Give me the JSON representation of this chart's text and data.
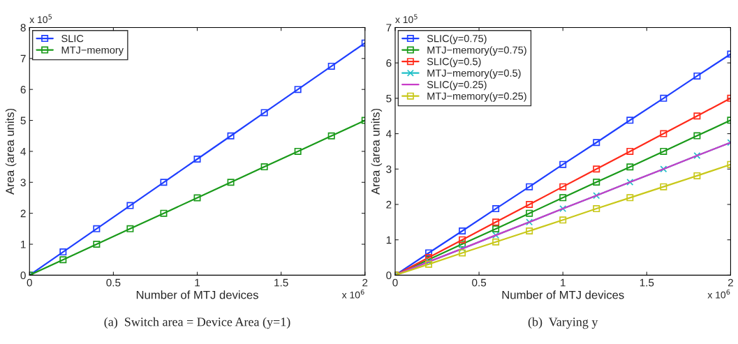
{
  "chart_data": [
    {
      "type": "line",
      "xlabel": "Number of MTJ devices",
      "ylabel": "Area (area units)",
      "legend": "top left",
      "grid": false,
      "marker": "square",
      "line_style": "solid",
      "x": [
        0,
        0.2,
        0.4,
        0.6,
        0.8,
        1,
        1.2,
        1.4,
        1.6,
        1.8,
        2
      ],
      "xlim": [
        0,
        2
      ],
      "xticks": [
        0,
        0.5,
        1,
        1.5,
        2
      ],
      "ylim": [
        0,
        8
      ],
      "yticks": [
        0,
        1,
        2,
        3,
        4,
        5,
        6,
        7,
        8
      ],
      "annotations": [
        "x 10$^{5}$",
        "x 10$^{6}$",
        "(a)  Switch area = Device Area (y=1)"
      ],
      "series": [
        {
          "name": "SLIC",
          "color": "#1f3fff",
          "values": [
            0,
            0.75,
            1.5,
            2.25,
            3,
            3.75,
            4.5,
            5.25,
            6,
            6.75,
            7.5
          ]
        },
        {
          "name": "MTJ−memory",
          "color": "#1a9a1a",
          "values": [
            0,
            0.5,
            1,
            1.5,
            2,
            2.5,
            3,
            3.5,
            4,
            4.5,
            5
          ]
        }
      ]
    },
    {
      "type": "line",
      "xlabel": "Number of MTJ devices",
      "ylabel": "Area (area units)",
      "legend": "top left",
      "grid": false,
      "line_style": "solid",
      "x": [
        0,
        0.2,
        0.4,
        0.6,
        0.8,
        1,
        1.2,
        1.4,
        1.6,
        1.8,
        2
      ],
      "xlim": [
        0,
        2
      ],
      "xticks": [
        0,
        0.5,
        1,
        1.5,
        2
      ],
      "ylim": [
        0,
        7
      ],
      "yticks": [
        0,
        1,
        2,
        3,
        4,
        5,
        6,
        7
      ],
      "annotations": [
        "x 10$^{5}$",
        "x 10$^{6}$",
        "(b)  Varying y"
      ],
      "series": [
        {
          "name": "SLIC(y=0.75)",
          "color": "#1f3fff",
          "marker": "square",
          "values": [
            0,
            0.63,
            1.25,
            1.88,
            2.5,
            3.13,
            3.75,
            4.38,
            5,
            5.63,
            6.25
          ]
        },
        {
          "name": "MTJ−memory(y=0.75)",
          "color": "#1a9a1a",
          "marker": "square",
          "values": [
            0,
            0.44,
            0.88,
            1.31,
            1.75,
            2.19,
            2.63,
            3.06,
            3.5,
            3.94,
            4.38
          ]
        },
        {
          "name": "SLIC(y=0.5)",
          "color": "#ff2a1a",
          "marker": "square",
          "values": [
            0,
            0.5,
            1,
            1.5,
            2,
            2.5,
            3,
            3.5,
            4,
            4.5,
            5
          ]
        },
        {
          "name": "MTJ−memory(y=0.5)",
          "color": "#20c0c8",
          "marker": "cross",
          "values": [
            0,
            0.38,
            0.75,
            1.13,
            1.5,
            1.88,
            2.25,
            2.63,
            3,
            3.38,
            3.75
          ]
        },
        {
          "name": "SLIC(y=0.25)",
          "color": "#c83cc8",
          "marker": "none",
          "values": [
            0,
            0.38,
            0.75,
            1.13,
            1.5,
            1.88,
            2.25,
            2.63,
            3,
            3.38,
            3.75
          ]
        },
        {
          "name": "MTJ−memory(y=0.25)",
          "color": "#c8c81a",
          "marker": "square",
          "values": [
            0,
            0.31,
            0.63,
            0.94,
            1.25,
            1.56,
            1.88,
            2.19,
            2.5,
            2.81,
            3.13
          ]
        }
      ]
    }
  ]
}
